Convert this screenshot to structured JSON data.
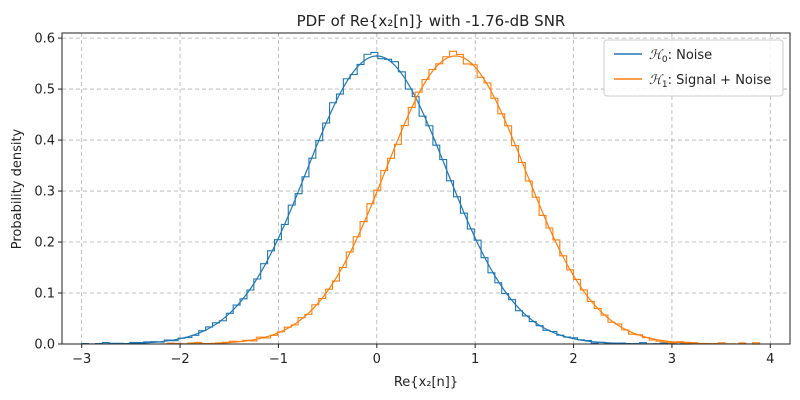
{
  "chart_data": {
    "type": "line",
    "title": "PDF of Re{x₂[n]} with -1.76-dB SNR",
    "xlabel": "Re{x₂[n]}",
    "ylabel": "Probability density",
    "xlim": [
      -3.2,
      4.2
    ],
    "ylim": [
      0.0,
      0.61
    ],
    "xticks": [
      -3,
      -2,
      -1,
      0,
      1,
      2,
      3,
      4
    ],
    "yticks": [
      0.0,
      0.1,
      0.2,
      0.3,
      0.4,
      0.5,
      0.6
    ],
    "grid": true,
    "legend_position": "top-right",
    "series": [
      {
        "name": "ℋ₀: Noise",
        "legend_prefix": "ℋ",
        "legend_sub": "0",
        "legend_suffix": ": Noise",
        "color": "#1f77b4",
        "style": "step-histogram-with-smooth-pdf",
        "mean": 0.0,
        "std": 0.707,
        "x_range": [
          -3.0,
          3.2
        ],
        "peak_density": 0.565
      },
      {
        "name": "ℋ₁: Signal + Noise",
        "legend_prefix": "ℋ",
        "legend_sub": "1",
        "legend_suffix": ": Signal + Noise",
        "color": "#ff7f0e",
        "style": "step-histogram-with-smooth-pdf",
        "mean": 0.8,
        "std": 0.707,
        "x_range": [
          -2.2,
          3.9
        ],
        "peak_density": 0.565
      }
    ]
  }
}
